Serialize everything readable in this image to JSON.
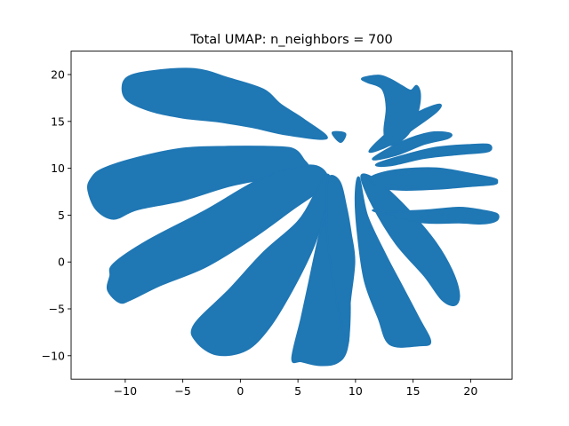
{
  "chart_data": {
    "type": "scatter",
    "title": "Total UMAP: n_neighbors = 700",
    "xlabel": "",
    "ylabel": "",
    "xlim": [
      -14.7,
      23.6
    ],
    "ylim": [
      -12.5,
      22.5
    ],
    "xticks": [
      -10,
      -5,
      0,
      5,
      10,
      15,
      20
    ],
    "yticks": [
      -10,
      -5,
      0,
      5,
      10,
      15,
      20
    ],
    "xtick_labels": [
      "−10",
      "−5",
      "0",
      "5",
      "10",
      "15",
      "20"
    ],
    "ytick_labels": [
      "−10",
      "−5",
      "0",
      "5",
      "10",
      "15",
      "20"
    ],
    "grid": false,
    "legend": "none",
    "point_color": "#1f77b4",
    "clusters": [
      {
        "name": "",
        "points": [
          [
            -10,
            19.5
          ],
          [
            -8,
            20.3
          ],
          [
            -4,
            20.6
          ],
          [
            -1,
            19.6
          ],
          [
            2,
            18.4
          ],
          [
            3.5,
            16.8
          ],
          [
            5.5,
            15.2
          ],
          [
            7.5,
            13.2
          ],
          [
            4,
            13.6
          ],
          [
            1,
            14.4
          ],
          [
            -2,
            15
          ],
          [
            -5,
            15.4
          ],
          [
            -8,
            16.2
          ],
          [
            -10,
            17.5
          ]
        ]
      },
      {
        "name": "",
        "points": [
          [
            -13,
            8.8
          ],
          [
            -12,
            9.9
          ],
          [
            -9,
            11.1
          ],
          [
            -5,
            12.1
          ],
          [
            -1,
            12.3
          ],
          [
            2,
            12.3
          ],
          [
            4.5,
            12.1
          ],
          [
            5.5,
            10.9
          ],
          [
            5.7,
            10
          ],
          [
            3,
            9.1
          ],
          [
            -1,
            8.1
          ],
          [
            -5,
            6.6
          ],
          [
            -9,
            5.6
          ],
          [
            -11,
            4.6
          ],
          [
            -12.5,
            5.6
          ],
          [
            -13.2,
            7.6
          ]
        ]
      },
      {
        "name": "",
        "points": [
          [
            -11,
            -0.2
          ],
          [
            -8,
            2.3
          ],
          [
            -3,
            5.5
          ],
          [
            2,
            9
          ],
          [
            6,
            10.3
          ],
          [
            7.5,
            9.3
          ],
          [
            7,
            7.8
          ],
          [
            4.5,
            5.6
          ],
          [
            1,
            2.5
          ],
          [
            -3,
            -0.5
          ],
          [
            -7,
            -2.5
          ],
          [
            -9.5,
            -4
          ],
          [
            -10.5,
            -4.3
          ],
          [
            -11.5,
            -3
          ],
          [
            -11.3,
            -1.5
          ]
        ]
      },
      {
        "name": "",
        "points": [
          [
            -4,
            -6.7
          ],
          [
            -1,
            -3
          ],
          [
            2,
            1
          ],
          [
            5,
            4.3
          ],
          [
            6.5,
            7.3
          ],
          [
            7.5,
            9.3
          ],
          [
            7.8,
            8.3
          ],
          [
            7.3,
            5.3
          ],
          [
            6.3,
            1.5
          ],
          [
            4.5,
            -3
          ],
          [
            2.5,
            -7
          ],
          [
            0.5,
            -9.4
          ],
          [
            -2,
            -9.9
          ],
          [
            -3.8,
            -8.5
          ]
        ]
      },
      {
        "name": "",
        "points": [
          [
            4.5,
            -10.3
          ],
          [
            5.3,
            -6
          ],
          [
            6,
            -2
          ],
          [
            6.7,
            2
          ],
          [
            7.4,
            5.5
          ],
          [
            7.8,
            7.3
          ],
          [
            8.4,
            6.5
          ],
          [
            8.8,
            2
          ],
          [
            9.4,
            -2
          ],
          [
            9.5,
            -6
          ],
          [
            9.2,
            -9.5
          ],
          [
            8.3,
            -10.8
          ],
          [
            6.8,
            -11
          ],
          [
            5.3,
            -10.6
          ]
        ]
      },
      {
        "name": "",
        "points": [
          [
            7.6,
            8.8
          ],
          [
            8.6,
            8.6
          ],
          [
            9.2,
            5.8
          ],
          [
            9.6,
            3
          ],
          [
            9.9,
            0
          ],
          [
            9.5,
            -4.5
          ],
          [
            9.3,
            -8.8
          ],
          [
            8.5,
            -5
          ],
          [
            7.8,
            0
          ],
          [
            7.5,
            4
          ]
        ]
      },
      {
        "name": "",
        "points": [
          [
            10.5,
            9.1
          ],
          [
            11.5,
            6
          ],
          [
            13.5,
            2
          ],
          [
            16,
            -1.5
          ],
          [
            17.5,
            -4
          ],
          [
            18.6,
            -4.6
          ],
          [
            19,
            -3.5
          ],
          [
            18.4,
            -1
          ],
          [
            17,
            2
          ],
          [
            15,
            5
          ],
          [
            13,
            7.5
          ],
          [
            11.5,
            9
          ]
        ]
      },
      {
        "name": "",
        "points": [
          [
            10.3,
            9
          ],
          [
            11,
            5
          ],
          [
            12.5,
            1
          ],
          [
            14,
            -2.5
          ],
          [
            15.5,
            -6
          ],
          [
            16.5,
            -8.5
          ],
          [
            15.5,
            -8.9
          ],
          [
            13,
            -8.8
          ],
          [
            12,
            -6
          ],
          [
            10.8,
            -2
          ],
          [
            10.2,
            3
          ],
          [
            10,
            7
          ]
        ]
      },
      {
        "name": "",
        "points": [
          [
            11.5,
            5.5
          ],
          [
            13,
            5.4
          ],
          [
            16,
            5.5
          ],
          [
            19,
            5.8
          ],
          [
            21,
            5.5
          ],
          [
            22.3,
            5.1
          ],
          [
            22.2,
            4.4
          ],
          [
            21,
            4.1
          ],
          [
            19,
            4.2
          ],
          [
            16,
            4.2
          ],
          [
            13.5,
            4.8
          ]
        ]
      },
      {
        "name": "",
        "points": [
          [
            11.3,
            9
          ],
          [
            13.5,
            9.8
          ],
          [
            17,
            10
          ],
          [
            20,
            9.4
          ],
          [
            22,
            8.9
          ],
          [
            22.3,
            8.6
          ],
          [
            22,
            8.3
          ],
          [
            20,
            8.1
          ],
          [
            17,
            7.8
          ],
          [
            14,
            7.7
          ],
          [
            12,
            8
          ]
        ]
      },
      {
        "name": "",
        "points": [
          [
            11.8,
            10.4
          ],
          [
            14,
            11.3
          ],
          [
            17,
            12.2
          ],
          [
            20,
            12.5
          ],
          [
            21.6,
            12.5
          ],
          [
            21.5,
            11.8
          ],
          [
            19,
            11.5
          ],
          [
            16,
            11.1
          ],
          [
            13,
            10.3
          ]
        ]
      },
      {
        "name": "",
        "points": [
          [
            11.5,
            11
          ],
          [
            14,
            12.8
          ],
          [
            16.5,
            13.8
          ],
          [
            18.2,
            13.7
          ],
          [
            18,
            13.2
          ],
          [
            16,
            12.6
          ],
          [
            13.5,
            11.4
          ]
        ]
      },
      {
        "name": "",
        "points": [
          [
            11.2,
            11.8
          ],
          [
            13,
            14
          ],
          [
            15.5,
            16
          ],
          [
            17.3,
            16.8
          ],
          [
            17,
            16
          ],
          [
            15,
            14.2
          ],
          [
            13,
            12.5
          ]
        ]
      },
      {
        "name": "",
        "points": [
          [
            10.6,
            19.6
          ],
          [
            12,
            19.9
          ],
          [
            13,
            19.5
          ],
          [
            14,
            18.8
          ],
          [
            14.8,
            18.3
          ],
          [
            15.3,
            18.8
          ],
          [
            15.6,
            18
          ],
          [
            15.5,
            16.5
          ],
          [
            15,
            14.5
          ],
          [
            14,
            13
          ],
          [
            12.8,
            12.5
          ],
          [
            12.5,
            14
          ],
          [
            12.7,
            16.5
          ],
          [
            12.3,
            18.5
          ],
          [
            11,
            19.2
          ]
        ]
      },
      {
        "name": "",
        "points": [
          [
            8,
            13.8
          ],
          [
            9.1,
            13.7
          ],
          [
            8.7,
            12.8
          ]
        ]
      }
    ]
  }
}
